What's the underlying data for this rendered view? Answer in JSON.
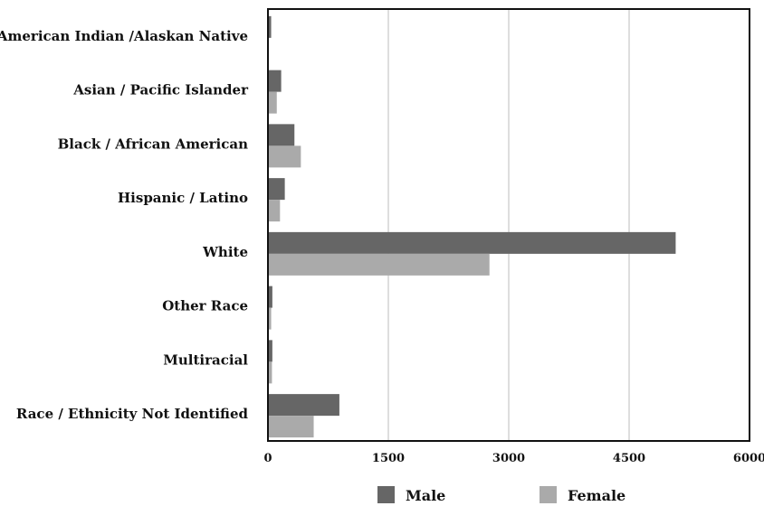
{
  "chart_data": {
    "type": "bar",
    "orientation": "horizontal",
    "title": "",
    "xlabel": "",
    "ylabel": "",
    "categories": [
      "American Indian /Alaskan Native",
      "Asian / Pacific Islander",
      "Black / African American",
      "Hispanic / Latino",
      "White",
      "Other Race",
      "Multiracial",
      "Race / Ethnicity Not Identified"
    ],
    "series": [
      {
        "name": "Male",
        "color": "#666666",
        "values": [
          40,
          165,
          330,
          210,
          5080,
          55,
          55,
          890
        ]
      },
      {
        "name": "Female",
        "color": "#aaaaaa",
        "values": [
          5,
          110,
          410,
          150,
          2760,
          40,
          50,
          570
        ]
      }
    ],
    "xlim": [
      0,
      6000
    ],
    "xticks": [
      "0",
      "1500",
      "3000",
      "4500",
      "6000"
    ],
    "grid": "vertical",
    "legend": {
      "position": "bottom",
      "items": [
        "Male",
        "Female"
      ]
    }
  }
}
